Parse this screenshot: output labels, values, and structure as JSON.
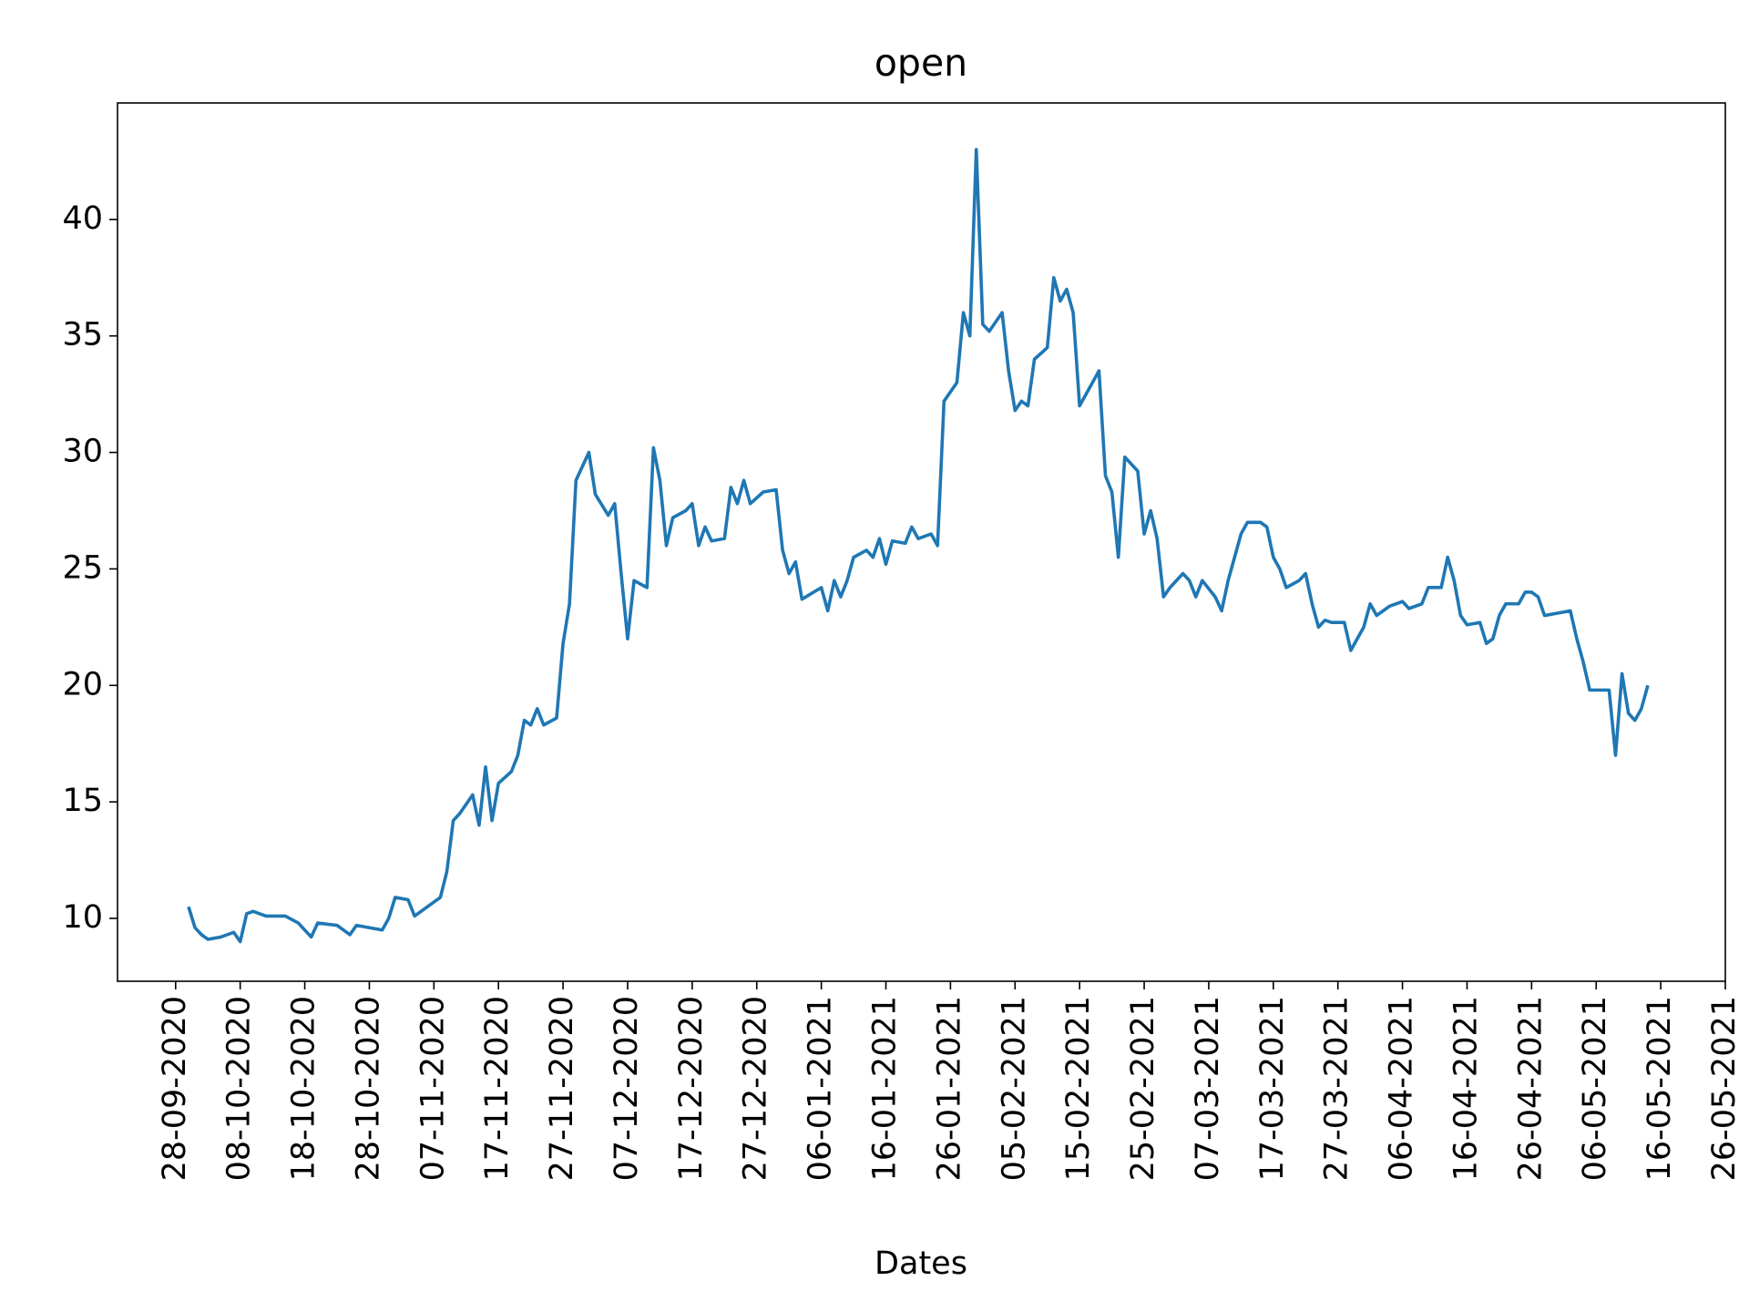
{
  "chart_data": {
    "type": "line",
    "title": "open",
    "x_label": "Dates",
    "xlim": [
      "19-09-2020",
      "26-05-2021"
    ],
    "xticks": [
      "28-09-2020",
      "08-10-2020",
      "18-10-2020",
      "28-10-2020",
      "07-11-2020",
      "17-11-2020",
      "27-11-2020",
      "07-12-2020",
      "17-12-2020",
      "27-12-2020",
      "06-01-2021",
      "16-01-2021",
      "26-01-2021",
      "05-02-2021",
      "15-02-2021",
      "25-02-2021",
      "07-03-2021",
      "17-03-2021",
      "27-03-2021",
      "06-04-2021",
      "16-04-2021",
      "26-04-2021",
      "06-05-2021",
      "16-05-2021",
      "26-05-2021"
    ],
    "ylim": [
      7.3,
      45.0
    ],
    "yticks": [
      10,
      15,
      20,
      25,
      30,
      35,
      40
    ],
    "grid": false,
    "x": [
      "30-09-2020",
      "01-10-2020",
      "02-10-2020",
      "03-10-2020",
      "05-10-2020",
      "07-10-2020",
      "08-10-2020",
      "09-10-2020",
      "10-10-2020",
      "12-10-2020",
      "15-10-2020",
      "17-10-2020",
      "19-10-2020",
      "20-10-2020",
      "23-10-2020",
      "25-10-2020",
      "26-10-2020",
      "30-10-2020",
      "31-10-2020",
      "01-11-2020",
      "03-11-2020",
      "04-11-2020",
      "06-11-2020",
      "08-11-2020",
      "09-11-2020",
      "10-11-2020",
      "11-11-2020",
      "13-11-2020",
      "14-11-2020",
      "15-11-2020",
      "16-11-2020",
      "17-11-2020",
      "19-11-2020",
      "20-11-2020",
      "21-11-2020",
      "22-11-2020",
      "23-11-2020",
      "24-11-2020",
      "26-11-2020",
      "27-11-2020",
      "28-11-2020",
      "29-11-2020",
      "01-12-2020",
      "02-12-2020",
      "04-12-2020",
      "05-12-2020",
      "06-12-2020",
      "07-12-2020",
      "08-12-2020",
      "10-12-2020",
      "11-12-2020",
      "12-12-2020",
      "13-12-2020",
      "14-12-2020",
      "16-12-2020",
      "17-12-2020",
      "18-12-2020",
      "19-12-2020",
      "20-12-2020",
      "22-12-2020",
      "23-12-2020",
      "24-12-2020",
      "25-12-2020",
      "26-12-2020",
      "28-12-2020",
      "30-12-2020",
      "31-12-2020",
      "01-01-2021",
      "02-01-2021",
      "03-01-2021",
      "06-01-2021",
      "07-01-2021",
      "08-01-2021",
      "09-01-2021",
      "10-01-2021",
      "11-01-2021",
      "13-01-2021",
      "14-01-2021",
      "15-01-2021",
      "16-01-2021",
      "17-01-2021",
      "19-01-2021",
      "20-01-2021",
      "21-01-2021",
      "23-01-2021",
      "24-01-2021",
      "25-01-2021",
      "27-01-2021",
      "28-01-2021",
      "29-01-2021",
      "30-01-2021",
      "31-01-2021",
      "01-02-2021",
      "03-02-2021",
      "04-02-2021",
      "05-02-2021",
      "06-02-2021",
      "07-02-2021",
      "08-02-2021",
      "10-02-2021",
      "11-02-2021",
      "12-02-2021",
      "13-02-2021",
      "14-02-2021",
      "15-02-2021",
      "16-02-2021",
      "18-02-2021",
      "19-02-2021",
      "20-02-2021",
      "21-02-2021",
      "22-02-2021",
      "24-02-2021",
      "25-02-2021",
      "26-02-2021",
      "27-02-2021",
      "28-02-2021",
      "01-03-2021",
      "03-03-2021",
      "04-03-2021",
      "05-03-2021",
      "06-03-2021",
      "08-03-2021",
      "09-03-2021",
      "10-03-2021",
      "11-03-2021",
      "12-03-2021",
      "13-03-2021",
      "15-03-2021",
      "16-03-2021",
      "17-03-2021",
      "18-03-2021",
      "19-03-2021",
      "21-03-2021",
      "22-03-2021",
      "23-03-2021",
      "24-03-2021",
      "25-03-2021",
      "26-03-2021",
      "28-03-2021",
      "29-03-2021",
      "30-03-2021",
      "31-03-2021",
      "01-04-2021",
      "02-04-2021",
      "04-04-2021",
      "05-04-2021",
      "06-04-2021",
      "07-04-2021",
      "09-04-2021",
      "10-04-2021",
      "12-04-2021",
      "13-04-2021",
      "14-04-2021",
      "15-04-2021",
      "16-04-2021",
      "18-04-2021",
      "19-04-2021",
      "20-04-2021",
      "21-04-2021",
      "22-04-2021",
      "24-04-2021",
      "25-04-2021",
      "26-04-2021",
      "27-04-2021",
      "28-04-2021",
      "30-04-2021",
      "02-05-2021",
      "03-05-2021",
      "04-05-2021",
      "05-05-2021",
      "06-05-2021",
      "08-05-2021",
      "09-05-2021",
      "10-05-2021",
      "11-05-2021",
      "12-05-2021",
      "13-05-2021",
      "14-05-2021"
    ],
    "series": [
      {
        "name": "open",
        "color": "#1f77b4",
        "values": [
          10.5,
          9.6,
          9.3,
          9.1,
          9.2,
          9.4,
          9.0,
          10.2,
          10.3,
          10.1,
          10.1,
          9.8,
          9.2,
          9.8,
          9.7,
          9.3,
          9.7,
          9.5,
          10.0,
          10.9,
          10.8,
          10.1,
          10.5,
          10.9,
          12.0,
          14.2,
          14.5,
          15.3,
          14.0,
          16.5,
          14.2,
          15.8,
          16.3,
          17.0,
          18.5,
          18.3,
          19.0,
          18.3,
          18.6,
          21.8,
          23.5,
          28.8,
          30.0,
          28.2,
          27.3,
          27.8,
          24.8,
          22.0,
          24.5,
          24.2,
          30.2,
          28.8,
          26.0,
          27.2,
          27.5,
          27.8,
          26.0,
          26.8,
          26.2,
          26.3,
          28.5,
          27.8,
          28.8,
          27.8,
          28.3,
          28.4,
          25.8,
          24.8,
          25.3,
          23.7,
          24.2,
          23.2,
          24.5,
          23.8,
          24.5,
          25.5,
          25.8,
          25.5,
          26.3,
          25.2,
          26.2,
          26.1,
          26.8,
          26.3,
          26.5,
          26.0,
          32.2,
          33.0,
          36.0,
          35.0,
          43.0,
          35.5,
          35.2,
          36.0,
          33.5,
          31.8,
          32.2,
          32.0,
          34.0,
          34.5,
          37.5,
          36.5,
          37.0,
          36.0,
          32.0,
          32.5,
          33.5,
          29.0,
          28.3,
          25.5,
          29.8,
          29.2,
          26.5,
          27.5,
          26.3,
          23.8,
          24.2,
          24.8,
          24.5,
          23.8,
          24.5,
          23.8,
          23.2,
          24.5,
          25.5,
          26.5,
          27.0,
          27.0,
          26.8,
          25.5,
          25.0,
          24.2,
          24.5,
          24.8,
          23.5,
          22.5,
          22.8,
          22.7,
          22.7,
          21.5,
          22.0,
          22.5,
          23.5,
          23.0,
          23.4,
          23.5,
          23.6,
          23.3,
          23.5,
          24.2,
          24.2,
          25.5,
          24.5,
          23.0,
          22.6,
          22.7,
          21.8,
          22.0,
          23.0,
          23.5,
          23.5,
          24.0,
          24.0,
          23.8,
          23.0,
          23.1,
          23.2,
          22.0,
          21.0,
          19.8,
          19.8,
          19.8,
          17.0,
          20.5,
          18.8,
          18.5,
          19.0,
          20.0
        ]
      }
    ]
  }
}
